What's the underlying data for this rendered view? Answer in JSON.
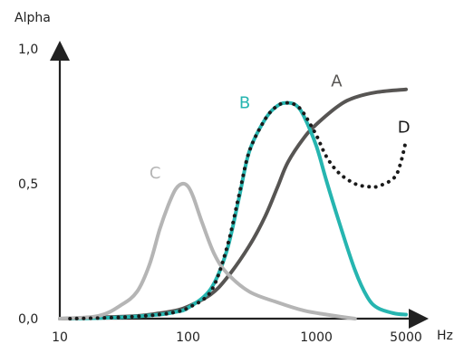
{
  "chart_data": {
    "type": "line",
    "title": "",
    "ylabel": "Alpha",
    "xlabel": "Hz",
    "xscale": "log",
    "xlim": [
      10,
      5000
    ],
    "ylim": [
      0,
      1
    ],
    "x_ticks": [
      {
        "value": 10,
        "label": "10"
      },
      {
        "value": 100,
        "label": "100"
      },
      {
        "value": 1000,
        "label": "1000"
      },
      {
        "value": 5000,
        "label": "5000"
      }
    ],
    "y_ticks": [
      {
        "value": 0,
        "label": "0,0"
      },
      {
        "value": 0.5,
        "label": "0,5"
      },
      {
        "value": 1.0,
        "label": "1,0"
      }
    ],
    "grid": false,
    "legend": "none (curves labeled inline)",
    "series": [
      {
        "name": "A",
        "color": "#575553",
        "style": "solid",
        "points": [
          [
            10,
            0.0
          ],
          [
            20,
            0.005
          ],
          [
            40,
            0.01
          ],
          [
            60,
            0.02
          ],
          [
            80,
            0.03
          ],
          [
            100,
            0.045
          ],
          [
            150,
            0.09
          ],
          [
            200,
            0.15
          ],
          [
            300,
            0.27
          ],
          [
            400,
            0.38
          ],
          [
            500,
            0.49
          ],
          [
            600,
            0.58
          ],
          [
            800,
            0.67
          ],
          [
            1000,
            0.72
          ],
          [
            1500,
            0.79
          ],
          [
            2000,
            0.82
          ],
          [
            3000,
            0.84
          ],
          [
            5000,
            0.85
          ]
        ]
      },
      {
        "name": "B",
        "color": "#26b5b0",
        "style": "solid",
        "points": [
          [
            12,
            0.0
          ],
          [
            30,
            0.005
          ],
          [
            60,
            0.015
          ],
          [
            80,
            0.025
          ],
          [
            100,
            0.04
          ],
          [
            150,
            0.11
          ],
          [
            200,
            0.25
          ],
          [
            250,
            0.45
          ],
          [
            300,
            0.62
          ],
          [
            400,
            0.74
          ],
          [
            500,
            0.79
          ],
          [
            600,
            0.8
          ],
          [
            700,
            0.79
          ],
          [
            800,
            0.75
          ],
          [
            1000,
            0.64
          ],
          [
            1200,
            0.51
          ],
          [
            1500,
            0.36
          ],
          [
            2000,
            0.18
          ],
          [
            2500,
            0.08
          ],
          [
            3000,
            0.04
          ],
          [
            4000,
            0.02
          ],
          [
            5000,
            0.015
          ]
        ]
      },
      {
        "name": "C",
        "color": "#b5b5b5",
        "style": "solid",
        "points": [
          [
            10,
            0.0
          ],
          [
            20,
            0.01
          ],
          [
            30,
            0.05
          ],
          [
            40,
            0.1
          ],
          [
            50,
            0.2
          ],
          [
            60,
            0.33
          ],
          [
            70,
            0.42
          ],
          [
            80,
            0.48
          ],
          [
            90,
            0.5
          ],
          [
            100,
            0.49
          ],
          [
            110,
            0.45
          ],
          [
            130,
            0.35
          ],
          [
            160,
            0.24
          ],
          [
            200,
            0.17
          ],
          [
            300,
            0.1
          ],
          [
            500,
            0.06
          ],
          [
            800,
            0.03
          ],
          [
            1200,
            0.015
          ],
          [
            2000,
            0.0
          ]
        ]
      },
      {
        "name": "D",
        "color": "#1a1a1a",
        "style": "dotted",
        "points": [
          [
            12,
            0.0
          ],
          [
            30,
            0.005
          ],
          [
            60,
            0.015
          ],
          [
            80,
            0.025
          ],
          [
            100,
            0.04
          ],
          [
            150,
            0.1
          ],
          [
            200,
            0.26
          ],
          [
            250,
            0.46
          ],
          [
            300,
            0.62
          ],
          [
            400,
            0.74
          ],
          [
            500,
            0.79
          ],
          [
            600,
            0.8
          ],
          [
            700,
            0.79
          ],
          [
            800,
            0.76
          ],
          [
            1000,
            0.68
          ],
          [
            1200,
            0.6
          ],
          [
            1500,
            0.54
          ],
          [
            2000,
            0.5
          ],
          [
            2500,
            0.49
          ],
          [
            3000,
            0.49
          ],
          [
            4000,
            0.52
          ],
          [
            4500,
            0.57
          ],
          [
            5000,
            0.66
          ]
        ]
      }
    ]
  }
}
